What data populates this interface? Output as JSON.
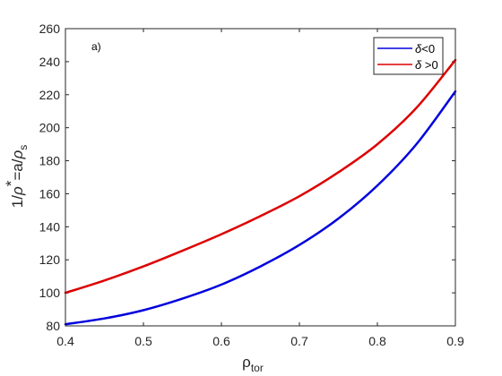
{
  "chart_data": {
    "type": "line",
    "xlabel": {
      "base": "ρ",
      "sub": "tor"
    },
    "ylabel": {
      "pre": "1/",
      "rho": "ρ",
      "star": "*",
      "mid": "=a/",
      "rho2": "ρ",
      "sub": "s"
    },
    "annotation": "a)",
    "xlim": [
      0.4,
      0.9
    ],
    "ylim": [
      80,
      260
    ],
    "xticks": [
      0.4,
      0.5,
      0.6,
      0.7,
      0.8,
      0.9
    ],
    "yticks": [
      80,
      100,
      120,
      140,
      160,
      180,
      200,
      220,
      240,
      260
    ],
    "grid": false,
    "legend_position": "top-right",
    "series": [
      {
        "name": "δ<0",
        "legend": {
          "sym": "δ",
          "text": "<0"
        },
        "color": "#0000dd",
        "x": [
          0.4,
          0.45,
          0.5,
          0.55,
          0.6,
          0.65,
          0.7,
          0.75,
          0.8,
          0.85,
          0.9
        ],
        "y": [
          81,
          84.5,
          89.5,
          96.5,
          105,
          116,
          129,
          145,
          165,
          190,
          222
        ]
      },
      {
        "name": "δ >0",
        "legend": {
          "sym": "δ",
          "text": " >0"
        },
        "color": "#dd0000",
        "x": [
          0.4,
          0.45,
          0.5,
          0.55,
          0.6,
          0.65,
          0.7,
          0.75,
          0.8,
          0.85,
          0.9
        ],
        "y": [
          100,
          107.5,
          116,
          125.5,
          135.5,
          146.5,
          158.5,
          173,
          190,
          212,
          241
        ]
      }
    ]
  }
}
